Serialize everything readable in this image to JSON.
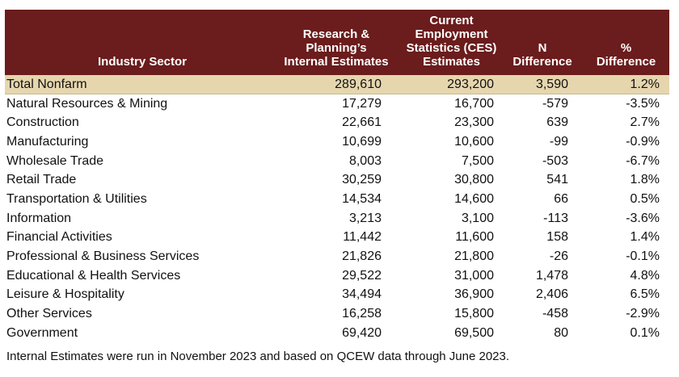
{
  "headers": {
    "sector": "Industry Sector",
    "internal": [
      "Research &",
      "Planning’s",
      "Internal Estimates"
    ],
    "ces": [
      "Current",
      "Employment",
      "Statistics (CES)",
      "Estimates"
    ],
    "n_diff": [
      "N",
      "Difference"
    ],
    "pct_diff": [
      "%",
      "Difference"
    ]
  },
  "rows": [
    {
      "sector": "Total Nonfarm",
      "internal": "289,610",
      "ces": "293,200",
      "n_diff": "3,590",
      "pct_diff": "1.2%"
    },
    {
      "sector": "Natural Resources & Mining",
      "internal": "17,279",
      "ces": "16,700",
      "n_diff": "-579",
      "pct_diff": "-3.5%"
    },
    {
      "sector": "Construction",
      "internal": "22,661",
      "ces": "23,300",
      "n_diff": "639",
      "pct_diff": "2.7%"
    },
    {
      "sector": "Manufacturing",
      "internal": "10,699",
      "ces": "10,600",
      "n_diff": "-99",
      "pct_diff": "-0.9%"
    },
    {
      "sector": "Wholesale Trade",
      "internal": "8,003",
      "ces": "7,500",
      "n_diff": "-503",
      "pct_diff": "-6.7%"
    },
    {
      "sector": "Retail Trade",
      "internal": "30,259",
      "ces": "30,800",
      "n_diff": "541",
      "pct_diff": "1.8%"
    },
    {
      "sector": "Transportation & Utilities",
      "internal": "14,534",
      "ces": "14,600",
      "n_diff": "66",
      "pct_diff": "0.5%"
    },
    {
      "sector": "Information",
      "internal": "3,213",
      "ces": "3,100",
      "n_diff": "-113",
      "pct_diff": "-3.6%"
    },
    {
      "sector": "Financial Activities",
      "internal": "11,442",
      "ces": "11,600",
      "n_diff": "158",
      "pct_diff": "1.4%"
    },
    {
      "sector": "Professional & Business Services",
      "internal": "21,826",
      "ces": "21,800",
      "n_diff": "-26",
      "pct_diff": "-0.1%"
    },
    {
      "sector": "Educational & Health Services",
      "internal": "29,522",
      "ces": "31,000",
      "n_diff": "1,478",
      "pct_diff": "4.8%"
    },
    {
      "sector": "Leisure & Hospitality",
      "internal": "34,494",
      "ces": "36,900",
      "n_diff": "2,406",
      "pct_diff": "6.5%"
    },
    {
      "sector": "Other Services",
      "internal": "16,258",
      "ces": "15,800",
      "n_diff": "-458",
      "pct_diff": "-2.9%"
    },
    {
      "sector": "Government",
      "internal": "69,420",
      "ces": "69,500",
      "n_diff": "80",
      "pct_diff": "0.1%"
    }
  ],
  "footnote": "Internal Estimates were run in November 2023 and based on QCEW data through June 2023.",
  "colors": {
    "header_bg": "#6b1c1c",
    "header_text": "#ffffff",
    "total_row_bg": "#e6d6ae"
  }
}
